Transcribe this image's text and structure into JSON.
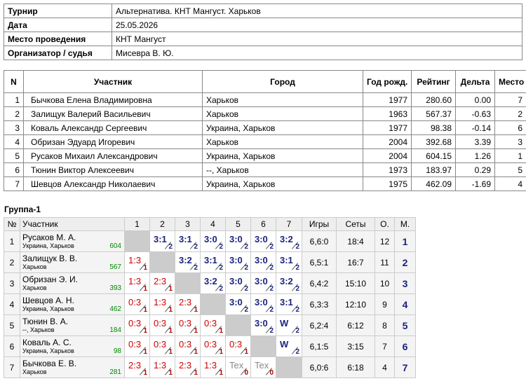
{
  "info": {
    "rows": [
      [
        "Турнир",
        "Альтернатива. КНТ Мангуст. Харьков"
      ],
      [
        "Дата",
        "25.05.2026"
      ],
      [
        "Место проведения",
        "КНТ Мангуст"
      ],
      [
        "Организатор / судья",
        "Мисевра В. Ю."
      ]
    ]
  },
  "players": {
    "headers": [
      "N",
      "Участник",
      "Город",
      "Год рожд.",
      "Рейтинг",
      "Дельта",
      "Место"
    ],
    "rows": [
      [
        1,
        "Бычкова Елена Владимировна",
        "Харьков",
        1977,
        "280.60",
        "0.00",
        7
      ],
      [
        2,
        "Залищук Валерий Васильевич",
        "Харьков",
        1963,
        "567.37",
        "-0.63",
        2
      ],
      [
        3,
        "Коваль Александр Сергеевич",
        "Украина, Харьков",
        1977,
        "98.38",
        "-0.14",
        6
      ],
      [
        4,
        "Обризан Эдуард Игоревич",
        "Харьков",
        2004,
        "392.68",
        "3.39",
        3
      ],
      [
        5,
        "Русаков Михаил Александрович",
        "Украина, Харьков",
        2004,
        "604.15",
        "1.26",
        1
      ],
      [
        6,
        "Тюнин Виктор Алексеевич",
        "--, Харьков",
        1973,
        "183.97",
        "0.29",
        5
      ],
      [
        7,
        "Шевцов Александр Николаевич",
        "Украина, Харьков",
        1975,
        "462.09",
        "-1.69",
        4
      ]
    ]
  },
  "group": {
    "title": "Группа-1",
    "headers": [
      "№",
      "Участник",
      "1",
      "2",
      "3",
      "4",
      "5",
      "6",
      "7",
      "Игры",
      "Сеты",
      "О.",
      "М."
    ],
    "rows": [
      {
        "n": 1,
        "name": "Русаков М. А.",
        "city": "Украина, Харьков",
        "rating": 604,
        "cells": [
          null,
          {
            "score": "3:1",
            "points": 2
          },
          {
            "score": "3:1",
            "points": 2
          },
          {
            "score": "3:0",
            "points": 2
          },
          {
            "score": "3:0",
            "points": 2
          },
          {
            "score": "3:0",
            "points": 2
          },
          {
            "score": "3:2",
            "points": 2
          }
        ],
        "games": "6,6:0",
        "sets": "18:4",
        "points": 12,
        "place": 1
      },
      {
        "n": 2,
        "name": "Залищук В. В.",
        "city": "Харьков",
        "rating": 567,
        "cells": [
          {
            "score": "1:3",
            "points": 1
          },
          null,
          {
            "score": "3:2",
            "points": 2
          },
          {
            "score": "3:1",
            "points": 2
          },
          {
            "score": "3:0",
            "points": 2
          },
          {
            "score": "3:0",
            "points": 2
          },
          {
            "score": "3:1",
            "points": 2
          }
        ],
        "games": "6,5:1",
        "sets": "16:7",
        "points": 11,
        "place": 2
      },
      {
        "n": 3,
        "name": "Обризан Э. И.",
        "city": "Харьков",
        "rating": 393,
        "cells": [
          {
            "score": "1:3",
            "points": 1
          },
          {
            "score": "2:3",
            "points": 1
          },
          null,
          {
            "score": "3:2",
            "points": 2
          },
          {
            "score": "3:0",
            "points": 2
          },
          {
            "score": "3:0",
            "points": 2
          },
          {
            "score": "3:2",
            "points": 2
          }
        ],
        "games": "6,4:2",
        "sets": "15:10",
        "points": 10,
        "place": 3
      },
      {
        "n": 4,
        "name": "Шевцов А. Н.",
        "city": "Украина, Харьков",
        "rating": 462,
        "cells": [
          {
            "score": "0:3",
            "points": 1
          },
          {
            "score": "1:3",
            "points": 1
          },
          {
            "score": "2:3",
            "points": 1
          },
          null,
          {
            "score": "3:0",
            "points": 2
          },
          {
            "score": "3:0",
            "points": 2
          },
          {
            "score": "3:1",
            "points": 2
          }
        ],
        "games": "6,3:3",
        "sets": "12:10",
        "points": 9,
        "place": 4
      },
      {
        "n": 5,
        "name": "Тюнин В. А.",
        "city": "--, Харьков",
        "rating": 184,
        "cells": [
          {
            "score": "0:3",
            "points": 1
          },
          {
            "score": "0:3",
            "points": 1
          },
          {
            "score": "0:3",
            "points": 1
          },
          {
            "score": "0:3",
            "points": 1
          },
          null,
          {
            "score": "3:0",
            "points": 2
          },
          {
            "score": "W",
            "points": 2
          }
        ],
        "games": "6,2:4",
        "sets": "6:12",
        "points": 8,
        "place": 5
      },
      {
        "n": 6,
        "name": "Коваль А. С.",
        "city": "Украина, Харьков",
        "rating": 98,
        "cells": [
          {
            "score": "0:3",
            "points": 1
          },
          {
            "score": "0:3",
            "points": 1
          },
          {
            "score": "0:3",
            "points": 1
          },
          {
            "score": "0:3",
            "points": 1
          },
          {
            "score": "0:3",
            "points": 1
          },
          null,
          {
            "score": "W",
            "points": 2
          }
        ],
        "games": "6,1:5",
        "sets": "3:15",
        "points": 7,
        "place": 6
      },
      {
        "n": 7,
        "name": "Бычкова Е. В.",
        "city": "Харьков",
        "rating": 281,
        "cells": [
          {
            "score": "2:3",
            "points": 1
          },
          {
            "score": "1:3",
            "points": 1
          },
          {
            "score": "2:3",
            "points": 1
          },
          {
            "score": "1:3",
            "points": 1
          },
          {
            "score": "Tex",
            "points": 0
          },
          {
            "score": "Tex",
            "points": 0
          },
          null
        ],
        "games": "6,0:6",
        "sets": "6:18",
        "points": 4,
        "place": 7
      }
    ]
  }
}
